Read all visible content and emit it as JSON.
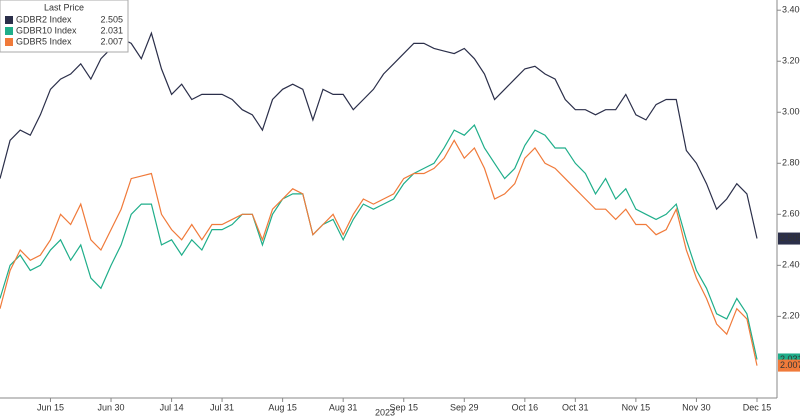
{
  "chart_data": {
    "type": "line",
    "legend_title": "Last Price",
    "x_label": "2023",
    "categories": [
      null,
      null,
      null,
      null,
      null,
      "Jun 15",
      null,
      null,
      null,
      null,
      null,
      "Jun 30",
      null,
      null,
      null,
      null,
      null,
      "Jul 14",
      null,
      null,
      null,
      null,
      "Jul 31",
      null,
      null,
      null,
      null,
      null,
      "Aug 15",
      null,
      null,
      null,
      null,
      null,
      "Aug 31",
      null,
      null,
      null,
      null,
      null,
      "Sep 15",
      null,
      null,
      null,
      null,
      null,
      "Sep 29",
      null,
      null,
      null,
      null,
      null,
      "Oct 16",
      null,
      null,
      null,
      null,
      "Oct 31",
      null,
      null,
      null,
      null,
      null,
      "Nov 15",
      null,
      null,
      null,
      null,
      null,
      "Nov 30",
      null,
      null,
      null,
      null,
      null,
      "Dec 15"
    ],
    "series": [
      {
        "name": "GDBR2 Index",
        "color": "#2b2f4a",
        "values": [
          2.74,
          2.89,
          2.93,
          2.91,
          2.99,
          3.09,
          3.13,
          3.15,
          3.19,
          3.13,
          3.21,
          3.25,
          3.29,
          3.27,
          3.21,
          3.31,
          3.17,
          3.07,
          3.11,
          3.05,
          3.07,
          3.07,
          3.07,
          3.05,
          3.01,
          2.99,
          2.93,
          3.05,
          3.09,
          3.11,
          3.09,
          2.97,
          3.09,
          3.07,
          3.07,
          3.01,
          3.05,
          3.09,
          3.15,
          3.19,
          3.23,
          3.27,
          3.27,
          3.25,
          3.24,
          3.23,
          3.25,
          3.21,
          3.15,
          3.05,
          3.09,
          3.13,
          3.17,
          3.18,
          3.15,
          3.13,
          3.05,
          3.01,
          3.01,
          2.99,
          3.01,
          3.01,
          3.07,
          2.99,
          2.97,
          3.03,
          3.05,
          3.05,
          2.85,
          2.8,
          2.72,
          2.62,
          2.66,
          2.72,
          2.68,
          2.505
        ]
      },
      {
        "name": "GDBR10 Index",
        "color": "#1fae8a",
        "values": [
          2.27,
          2.4,
          2.44,
          2.38,
          2.4,
          2.46,
          2.5,
          2.42,
          2.48,
          2.35,
          2.31,
          2.4,
          2.48,
          2.6,
          2.64,
          2.64,
          2.48,
          2.5,
          2.44,
          2.5,
          2.46,
          2.54,
          2.54,
          2.56,
          2.6,
          2.6,
          2.48,
          2.6,
          2.66,
          2.68,
          2.68,
          2.52,
          2.56,
          2.58,
          2.5,
          2.58,
          2.64,
          2.62,
          2.64,
          2.66,
          2.72,
          2.76,
          2.78,
          2.8,
          2.86,
          2.93,
          2.91,
          2.95,
          2.86,
          2.8,
          2.74,
          2.78,
          2.87,
          2.93,
          2.91,
          2.86,
          2.86,
          2.8,
          2.76,
          2.68,
          2.74,
          2.66,
          2.7,
          2.62,
          2.6,
          2.58,
          2.6,
          2.64,
          2.5,
          2.38,
          2.31,
          2.21,
          2.19,
          2.27,
          2.21,
          2.031
        ]
      },
      {
        "name": "GDBR5 Index",
        "color": "#f07a3a",
        "values": [
          2.23,
          2.38,
          2.46,
          2.42,
          2.44,
          2.5,
          2.6,
          2.56,
          2.64,
          2.5,
          2.46,
          2.54,
          2.62,
          2.74,
          2.75,
          2.76,
          2.6,
          2.54,
          2.5,
          2.56,
          2.5,
          2.56,
          2.56,
          2.58,
          2.6,
          2.6,
          2.5,
          2.62,
          2.66,
          2.7,
          2.68,
          2.52,
          2.56,
          2.6,
          2.52,
          2.6,
          2.66,
          2.64,
          2.66,
          2.68,
          2.74,
          2.76,
          2.76,
          2.78,
          2.82,
          2.89,
          2.82,
          2.86,
          2.78,
          2.66,
          2.68,
          2.72,
          2.82,
          2.86,
          2.8,
          2.78,
          2.74,
          2.7,
          2.66,
          2.62,
          2.62,
          2.58,
          2.62,
          2.56,
          2.56,
          2.52,
          2.54,
          2.62,
          2.46,
          2.35,
          2.27,
          2.17,
          2.13,
          2.23,
          2.19,
          2.007
        ]
      }
    ],
    "ylim": [
      1.88,
      3.44
    ],
    "yticks": [
      {
        "value": 2.2,
        "label": "2.200"
      },
      {
        "value": 2.4,
        "label": "2.400"
      },
      {
        "value": 2.6,
        "label": "2.600"
      },
      {
        "value": 2.8,
        "label": "2.800"
      },
      {
        "value": 3.0,
        "label": "3.000"
      },
      {
        "value": 3.2,
        "label": "3.200"
      },
      {
        "value": 3.4,
        "label": "3.400"
      }
    ],
    "y_axis_side": "right"
  }
}
